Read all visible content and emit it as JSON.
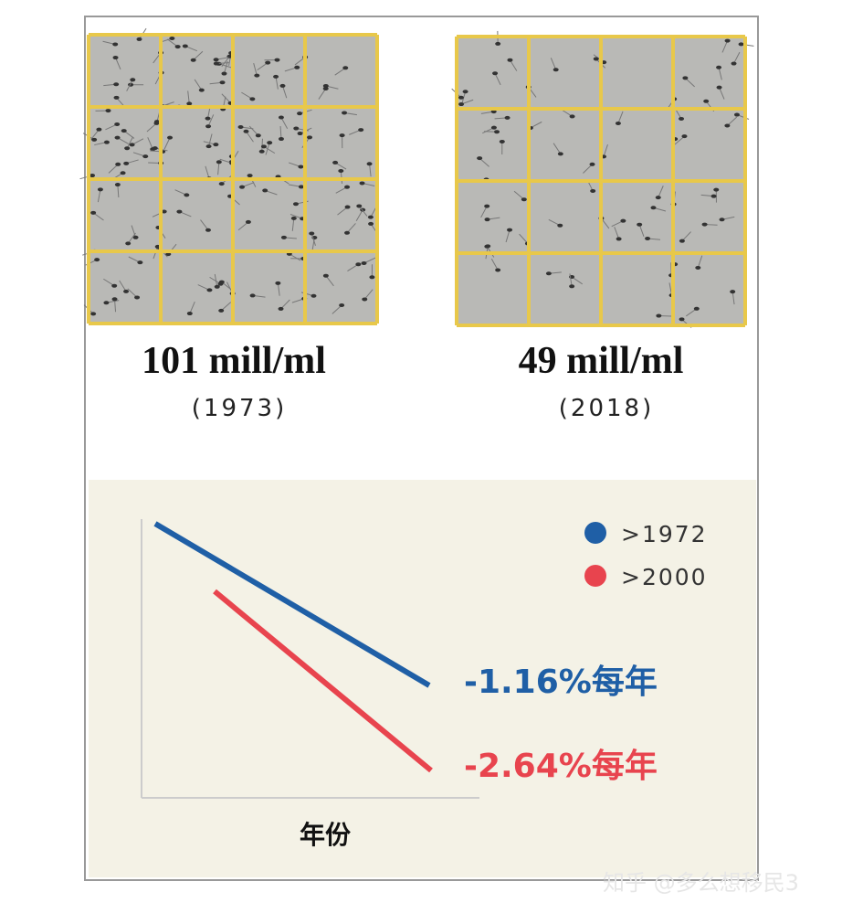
{
  "panels": [
    {
      "value_label": "101 mill/ml",
      "year": "(1973)"
    },
    {
      "value_label": "49 mill/ml",
      "year": "(2018)"
    }
  ],
  "chart": {
    "legend": [
      {
        "label": ">1972",
        "color": "#1f5fa6"
      },
      {
        "label": ">2000",
        "color": "#e8444e"
      }
    ],
    "annotations": [
      "-1.16%每年",
      "-2.64%每年"
    ],
    "x_axis_label": "年份"
  },
  "watermark": "知乎 @多么想移民3"
}
